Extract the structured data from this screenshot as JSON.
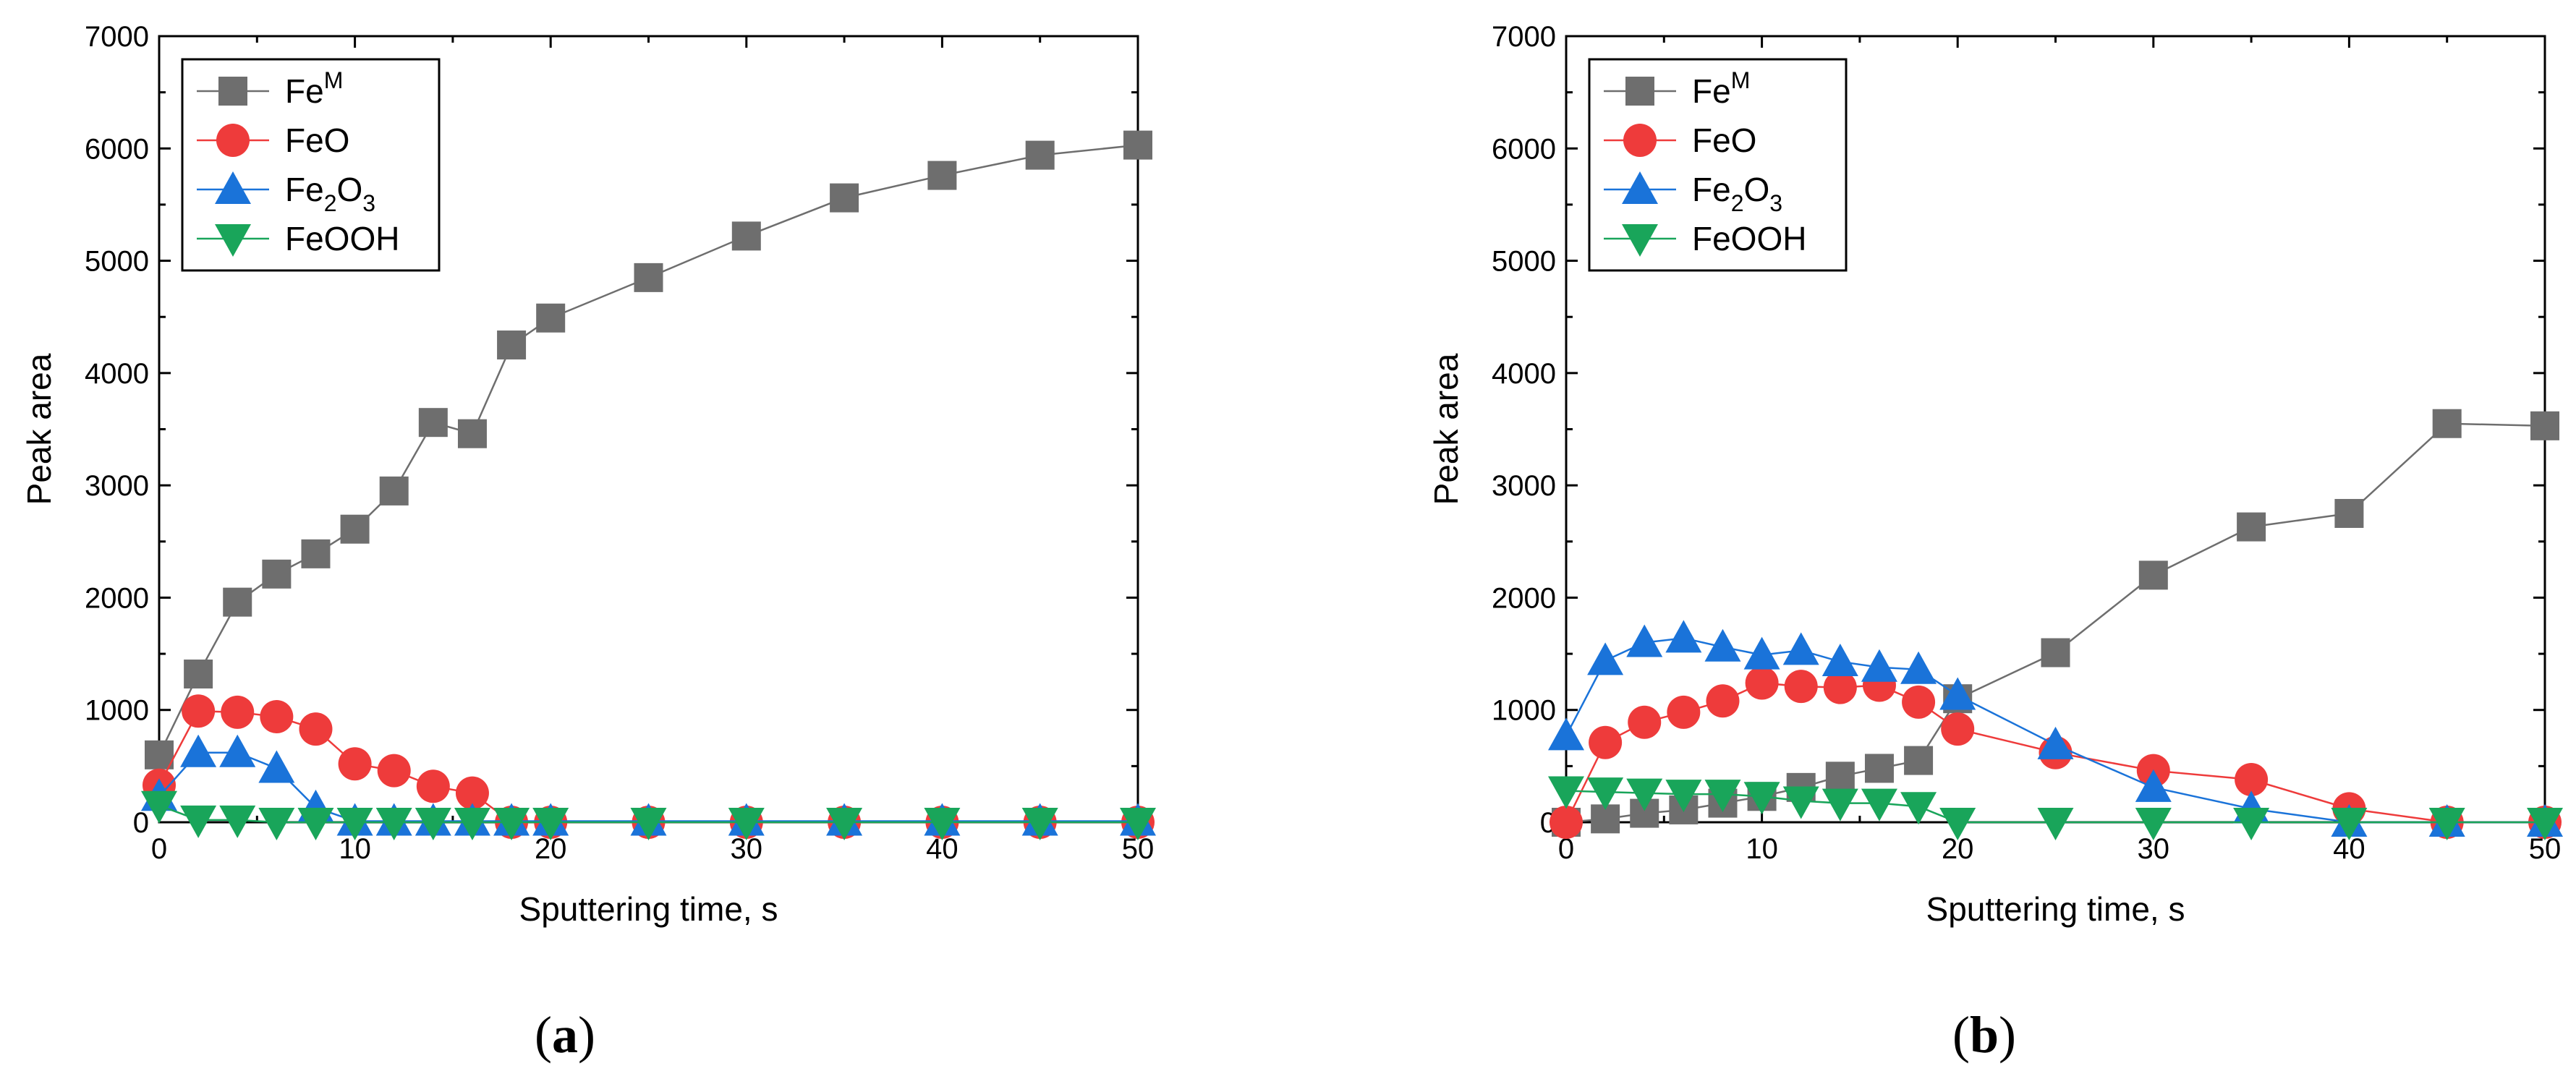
{
  "chart_data": [
    {
      "panel": "(a)",
      "panel_letter": "a",
      "type": "line",
      "xlabel": "Sputtering time, s",
      "ylabel": "Peak area",
      "xlim": [
        0,
        50
      ],
      "ylim": [
        0,
        7000
      ],
      "xticks": [
        0,
        10,
        20,
        30,
        40,
        50
      ],
      "yticks": [
        0,
        1000,
        2000,
        3000,
        4000,
        5000,
        6000,
        7000
      ],
      "legend_position": "top-left",
      "series": [
        {
          "name": "FeM",
          "label_main": "Fe",
          "label_sup": "M",
          "label_sub": "",
          "label_tail": "",
          "color": "#6e6e6e",
          "marker": "square",
          "x": [
            0,
            2,
            4,
            6,
            8,
            10,
            12,
            14,
            16,
            18,
            20,
            25,
            30,
            35,
            40,
            45,
            50
          ],
          "y": [
            600,
            1320,
            1960,
            2210,
            2390,
            2610,
            2950,
            3560,
            3460,
            4250,
            4490,
            4850,
            5220,
            5560,
            5760,
            5940,
            6030
          ]
        },
        {
          "name": "FeO",
          "label_main": "FeO",
          "label_sup": "",
          "label_sub": "",
          "label_tail": "",
          "color": "#ee3b3b",
          "marker": "circle",
          "x": [
            0,
            2,
            4,
            6,
            8,
            10,
            12,
            14,
            16,
            18,
            20,
            25,
            30,
            35,
            40,
            45,
            50
          ],
          "y": [
            330,
            990,
            980,
            940,
            830,
            520,
            460,
            320,
            260,
            0,
            0,
            0,
            0,
            0,
            0,
            0,
            0
          ]
        },
        {
          "name": "Fe2O3",
          "label_main": "Fe",
          "label_sup": "",
          "label_sub": "2",
          "label_tail": "O",
          "label_sub2": "3",
          "color": "#1a73d9",
          "marker": "triangle-up",
          "x": [
            0,
            2,
            4,
            6,
            8,
            10,
            12,
            14,
            16,
            18,
            20,
            25,
            30,
            35,
            40,
            45,
            50
          ],
          "y": [
            230,
            620,
            620,
            480,
            130,
            10,
            10,
            10,
            10,
            10,
            10,
            10,
            10,
            10,
            10,
            10,
            10
          ]
        },
        {
          "name": "FeOOH",
          "label_main": "FeOOH",
          "label_sup": "",
          "label_sub": "",
          "label_tail": "",
          "color": "#19a55a",
          "marker": "triangle-down",
          "x": [
            0,
            2,
            4,
            6,
            8,
            10,
            12,
            14,
            16,
            18,
            20,
            25,
            30,
            35,
            40,
            45,
            50
          ],
          "y": [
            150,
            20,
            20,
            0,
            0,
            0,
            0,
            0,
            0,
            0,
            0,
            0,
            0,
            0,
            0,
            0,
            0
          ]
        }
      ]
    },
    {
      "panel": "(b)",
      "panel_letter": "b",
      "type": "line",
      "xlabel": "Sputtering time, s",
      "ylabel": "Peak area",
      "xlim": [
        0,
        50
      ],
      "ylim": [
        0,
        7000
      ],
      "xticks": [
        0,
        10,
        20,
        30,
        40,
        50
      ],
      "yticks": [
        0,
        1000,
        2000,
        3000,
        4000,
        5000,
        6000,
        7000
      ],
      "legend_position": "top-left",
      "series": [
        {
          "name": "FeM",
          "label_main": "Fe",
          "label_sup": "M",
          "label_sub": "",
          "label_tail": "",
          "color": "#6e6e6e",
          "marker": "square",
          "x": [
            0,
            2,
            4,
            6,
            8,
            10,
            12,
            14,
            16,
            18,
            20,
            25,
            30,
            35,
            40,
            45,
            50
          ],
          "y": [
            0,
            30,
            80,
            110,
            170,
            230,
            310,
            410,
            480,
            550,
            1100,
            1510,
            2200,
            2630,
            2750,
            3550,
            3530
          ]
        },
        {
          "name": "FeO",
          "label_main": "FeO",
          "label_sup": "",
          "label_sub": "",
          "label_tail": "",
          "color": "#ee3b3b",
          "marker": "circle",
          "x": [
            0,
            2,
            4,
            6,
            8,
            10,
            12,
            14,
            16,
            18,
            20,
            25,
            30,
            35,
            40,
            45,
            50
          ],
          "y": [
            0,
            710,
            890,
            980,
            1080,
            1240,
            1210,
            1200,
            1220,
            1070,
            830,
            620,
            460,
            380,
            120,
            0,
            0
          ]
        },
        {
          "name": "Fe2O3",
          "label_main": "Fe",
          "label_sup": "",
          "label_sub": "2",
          "label_tail": "O",
          "label_sub2": "3",
          "color": "#1a73d9",
          "marker": "triangle-up",
          "x": [
            0,
            2,
            4,
            6,
            8,
            10,
            12,
            14,
            16,
            18,
            20,
            25,
            30,
            35,
            40,
            45,
            50
          ],
          "y": [
            770,
            1440,
            1600,
            1640,
            1560,
            1490,
            1530,
            1430,
            1380,
            1360,
            1130,
            690,
            310,
            120,
            0,
            0,
            0
          ]
        },
        {
          "name": "FeOOH",
          "label_main": "FeOOH",
          "label_sup": "",
          "label_sub": "",
          "label_tail": "",
          "color": "#19a55a",
          "marker": "triangle-down",
          "x": [
            0,
            2,
            4,
            6,
            8,
            10,
            12,
            14,
            16,
            18,
            20,
            25,
            30,
            35,
            40,
            45,
            50
          ],
          "y": [
            280,
            270,
            260,
            250,
            250,
            230,
            190,
            170,
            170,
            140,
            0,
            0,
            0,
            0,
            0,
            0,
            0
          ]
        }
      ]
    }
  ]
}
